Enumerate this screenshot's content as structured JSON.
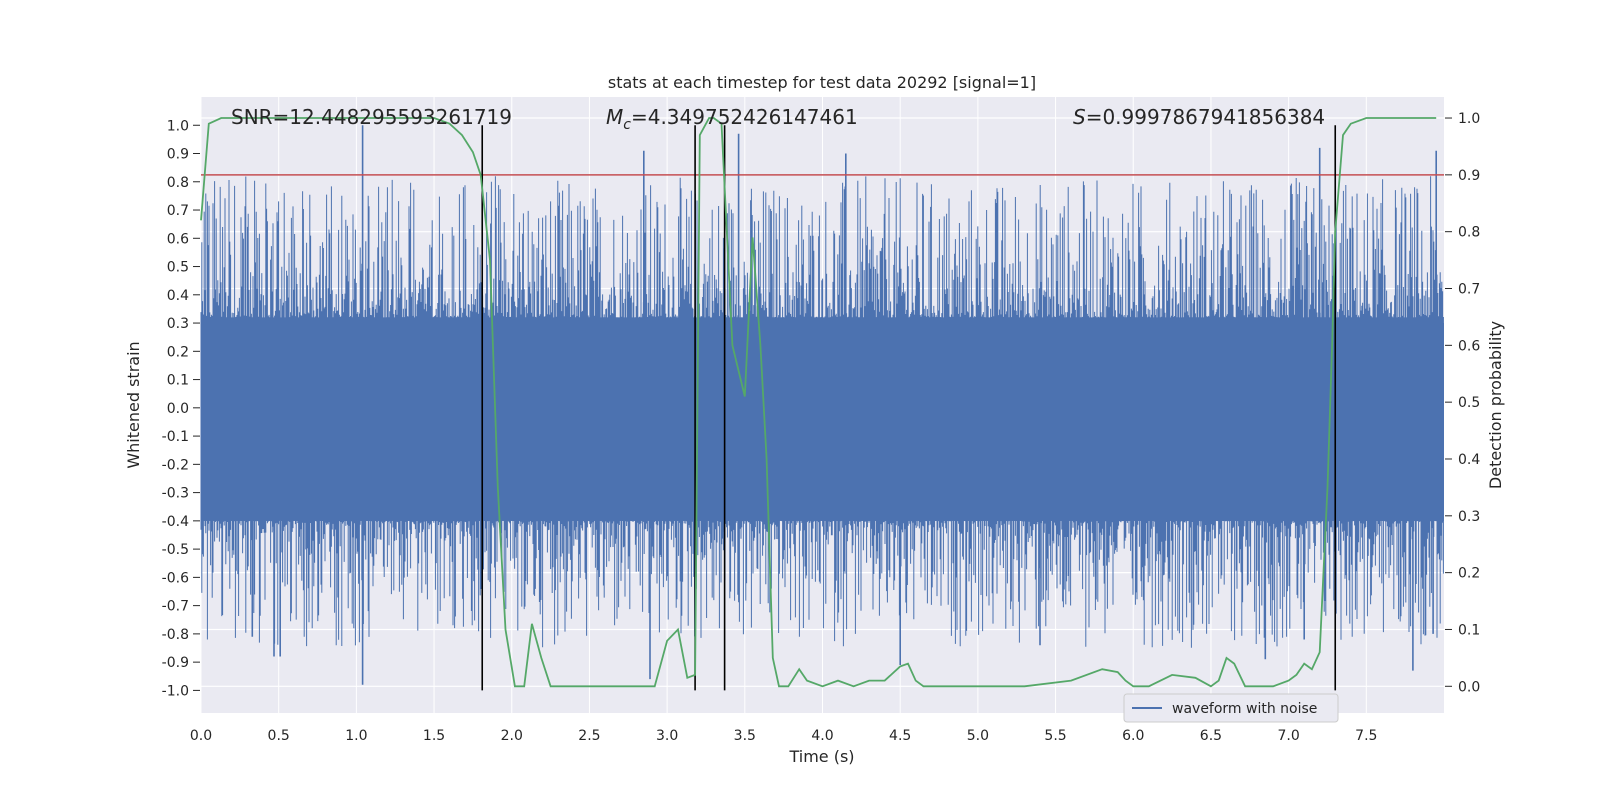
{
  "chart_data": {
    "type": "line",
    "title": "stats at each timestep for test data 20292 [signal=1]",
    "xlabel": "Time (s)",
    "ylabel": "Whitened strain",
    "y2label": "Detection probability",
    "xlim": [
      0.0,
      8.0
    ],
    "ylim": [
      -1.08,
      1.1
    ],
    "y2lim": [
      -0.047,
      1.037
    ],
    "xticks": [
      "0.0",
      "0.5",
      "1.0",
      "1.5",
      "2.0",
      "2.5",
      "3.0",
      "3.5",
      "4.0",
      "4.5",
      "5.0",
      "5.5",
      "6.0",
      "6.5",
      "7.0",
      "7.5"
    ],
    "yticks": [
      "1.0",
      "0.9",
      "0.8",
      "0.7",
      "0.6",
      "0.5",
      "0.4",
      "0.3",
      "0.2",
      "0.1",
      "0.0",
      "-0.1",
      "-0.2",
      "-0.3",
      "-0.4",
      "-0.5",
      "-0.6",
      "-0.7",
      "-0.8",
      "-0.9",
      "-1.0"
    ],
    "y2ticks": [
      "1.0",
      "0.9",
      "0.8",
      "0.7",
      "0.6",
      "0.5",
      "0.4",
      "0.3",
      "0.2",
      "0.1",
      "0.0"
    ],
    "annotations": {
      "snr": "SNR=12.448295593261719",
      "mc_prefix": "M",
      "mc_sub": "c",
      "mc_value": "=4.349752426147461",
      "s_prefix": "S",
      "s_value": "=0.9997867941856384"
    },
    "threshold": {
      "axis": "y2",
      "value": 0.9,
      "color": "#c44e52"
    },
    "vertical_markers": [
      {
        "x": 1.81,
        "y_from": -1.0,
        "y_to": 1.0
      },
      {
        "x": 3.18,
        "y_from": -1.0,
        "y_to": 1.0
      },
      {
        "x": 3.37,
        "y_from": -1.0,
        "y_to": 1.0
      },
      {
        "x": 7.3,
        "y_from": -1.0,
        "y_to": 1.0
      }
    ],
    "legend": {
      "label": "waveform with noise",
      "position": "lower-right"
    },
    "series": [
      {
        "name": "waveform with noise",
        "axis": "y",
        "color": "#4c72b0",
        "style": "dense oscillating noise, envelope approx ±0.45 with spikes to ±1.0",
        "notable_peaks": [
          {
            "x": 1.04,
            "y": 1.0
          },
          {
            "x": 1.04,
            "y": -0.98
          },
          {
            "x": 0.33,
            "y": -0.81
          },
          {
            "x": 0.47,
            "y": -0.88
          },
          {
            "x": 0.51,
            "y": -0.88
          },
          {
            "x": 2.89,
            "y": -0.96
          },
          {
            "x": 2.85,
            "y": 0.91
          },
          {
            "x": 3.46,
            "y": 0.97
          },
          {
            "x": 4.15,
            "y": 0.9
          },
          {
            "x": 4.5,
            "y": -0.91
          },
          {
            "x": 5.4,
            "y": -0.84
          },
          {
            "x": 6.85,
            "y": -0.89
          },
          {
            "x": 7.1,
            "y": -0.82
          },
          {
            "x": 7.2,
            "y": 0.92
          },
          {
            "x": 7.8,
            "y": -0.93
          },
          {
            "x": 7.95,
            "y": 0.91
          },
          {
            "x": 7.93,
            "y": -0.8
          }
        ]
      },
      {
        "name": "Detection probability",
        "axis": "y2",
        "color": "#55a868",
        "x": [
          0.0,
          0.05,
          0.13,
          0.2,
          0.5,
          1.0,
          1.3,
          1.5,
          1.6,
          1.68,
          1.75,
          1.8,
          1.86,
          1.91,
          1.96,
          2.02,
          2.08,
          2.13,
          2.19,
          2.25,
          2.5,
          2.75,
          2.92,
          3.0,
          3.07,
          3.13,
          3.18,
          3.21,
          3.27,
          3.3,
          3.35,
          3.42,
          3.5,
          3.55,
          3.6,
          3.64,
          3.68,
          3.72,
          3.78,
          3.85,
          3.9,
          4.0,
          4.1,
          4.2,
          4.3,
          4.4,
          4.5,
          4.55,
          4.6,
          4.65,
          4.7,
          4.8,
          5.0,
          5.3,
          5.6,
          5.8,
          5.9,
          5.95,
          6.0,
          6.1,
          6.25,
          6.4,
          6.5,
          6.55,
          6.6,
          6.65,
          6.72,
          6.8,
          6.9,
          7.0,
          7.05,
          7.1,
          7.15,
          7.2,
          7.25,
          7.28,
          7.3,
          7.35,
          7.4,
          7.5,
          7.6,
          7.7,
          7.8,
          7.85,
          7.9,
          7.95
        ],
        "y": [
          0.82,
          0.99,
          1.0,
          1.0,
          1.0,
          1.0,
          1.0,
          1.0,
          0.99,
          0.97,
          0.94,
          0.9,
          0.75,
          0.35,
          0.1,
          0.0,
          0.0,
          0.11,
          0.05,
          0.0,
          0.0,
          0.0,
          0.0,
          0.08,
          0.1,
          0.015,
          0.02,
          0.97,
          1.0,
          1.0,
          0.99,
          0.6,
          0.51,
          0.79,
          0.6,
          0.4,
          0.05,
          0.0,
          0.0,
          0.03,
          0.01,
          0.0,
          0.01,
          0.0,
          0.01,
          0.01,
          0.035,
          0.04,
          0.01,
          0.0,
          0.0,
          0.0,
          0.0,
          0.0,
          0.01,
          0.03,
          0.025,
          0.01,
          0.0,
          0.0,
          0.02,
          0.015,
          0.0,
          0.01,
          0.05,
          0.04,
          0.0,
          0.0,
          0.0,
          0.01,
          0.02,
          0.04,
          0.03,
          0.06,
          0.35,
          0.6,
          0.8,
          0.97,
          0.99,
          1.0,
          1.0,
          1.0,
          1.0,
          1.0,
          1.0,
          1.0
        ]
      }
    ]
  }
}
